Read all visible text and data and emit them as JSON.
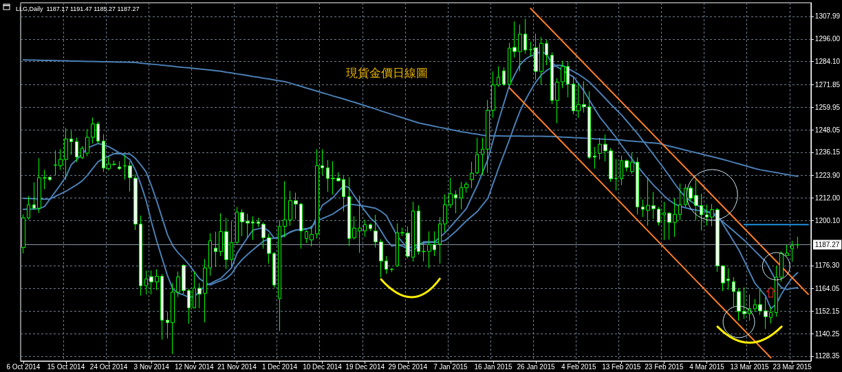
{
  "chart_data": {
    "type": "candlestick",
    "title": "LLG,Daily  1187.17 1191.47 1185.27 1187.27",
    "annotations": [
      "現貨金價日線圖"
    ],
    "categories": [
      "6 Oct 2014",
      null,
      null,
      null,
      null,
      null,
      null,
      null,
      "15 Oct 2014",
      null,
      null,
      null,
      null,
      null,
      null,
      null,
      "24 Oct 2014",
      null,
      null,
      null,
      null,
      null,
      null,
      null,
      "3 Nov 2014",
      null,
      null,
      null,
      null,
      null,
      null,
      null,
      "12 Nov 2014",
      null,
      null,
      null,
      null,
      null,
      null,
      null,
      "21 Nov 2014",
      null,
      null,
      null,
      null,
      null,
      null,
      null,
      "1 Dec 2014",
      null,
      null,
      null,
      null,
      null,
      null,
      null,
      "10 Dec 2014",
      null,
      null,
      null,
      null,
      null,
      null,
      null,
      "19 Dec 2014",
      null,
      null,
      null,
      null,
      null,
      null,
      null,
      "29 Dec 2014",
      null,
      null,
      null,
      null,
      null,
      null,
      null,
      "7 Jan 2015",
      null,
      null,
      null,
      null,
      null,
      null,
      null,
      "16 Jan 2015",
      null,
      null,
      null,
      null,
      null,
      null,
      null,
      "26 Jan 2015",
      null,
      null,
      null,
      null,
      null,
      null,
      null,
      "4 Feb 2015",
      null,
      null,
      null,
      null,
      null,
      null,
      null,
      "13 Feb 2015",
      null,
      null,
      null,
      null,
      null,
      null,
      null,
      "23 Feb 2015",
      null,
      null,
      null,
      null,
      null,
      null,
      null,
      "4 Mar 2015",
      null,
      null,
      null,
      null,
      null,
      null,
      null,
      "13 Mar 2015",
      null,
      null,
      null,
      null,
      null,
      null,
      null,
      "23 Mar 2015",
      null,
      null,
      null
    ],
    "color": "#00ff00",
    "ohlc": [
      [
        1185.8,
        1203.3,
        1182.7,
        1201.5
      ],
      [
        1201.5,
        1213.0,
        1200.6,
        1208.4
      ],
      [
        1208.4,
        1220.2,
        1205.7,
        1206.6
      ],
      [
        1206.6,
        1233.0,
        1204.1,
        1222.7
      ],
      [
        1222.7,
        1226.9,
        1216.6,
        1222.5
      ],
      [
        1223.0,
        1223.2,
        1220.8,
        1221.7
      ],
      [
        1229.3,
        1237.2,
        1224.1,
        1229.5
      ],
      [
        1229.0,
        1237.8,
        1226.8,
        1232.4
      ],
      [
        1232.4,
        1249.0,
        1221.5,
        1243.2
      ],
      [
        1243.2,
        1247.5,
        1234.8,
        1241.8
      ],
      [
        1241.8,
        1243.9,
        1230.9,
        1233.6
      ],
      [
        1233.3,
        1239.4,
        1232.6,
        1238.2
      ],
      [
        1235.7,
        1248.3,
        1234.0,
        1244.1
      ],
      [
        1244.1,
        1254.5,
        1240.8,
        1251.1
      ],
      [
        1251.1,
        1252.3,
        1240.6,
        1242.0
      ],
      [
        1242.0,
        1245.7,
        1225.7,
        1227.8
      ],
      [
        1227.5,
        1233.8,
        1226.5,
        1229.9
      ],
      [
        1229.9,
        1231.8,
        1229.0,
        1229.7
      ],
      [
        1228.4,
        1231.4,
        1226.8,
        1227.5
      ],
      [
        1229.0,
        1234.8,
        1221.7,
        1228.9
      ],
      [
        1229.0,
        1231.4,
        1215.4,
        1222.7
      ],
      [
        1222.4,
        1224.5,
        1195.1,
        1198.2
      ],
      [
        1198.2,
        1202.7,
        1160.4,
        1165.6
      ],
      [
        1165.6,
        1173.7,
        1161.0,
        1169.2
      ],
      [
        1170.4,
        1173.7,
        1161.0,
        1167.6
      ],
      [
        1167.6,
        1174.3,
        1163.4,
        1170.6
      ],
      [
        1170.6,
        1171.8,
        1137.1,
        1147.4
      ],
      [
        1147.4,
        1151.9,
        1137.7,
        1146.1
      ],
      [
        1146.1,
        1167.0,
        1129.5,
        1162.2
      ],
      [
        1162.2,
        1173.1,
        1159.7,
        1170.3
      ],
      [
        1176.4,
        1176.9,
        1161.2,
        1163.1
      ],
      [
        1163.1,
        1164.0,
        1145.5,
        1153.9
      ],
      [
        1153.9,
        1173.1,
        1153.7,
        1164.3
      ],
      [
        1164.3,
        1167.0,
        1153.7,
        1161.2
      ],
      [
        1161.6,
        1179.7,
        1146.2,
        1175.0
      ],
      [
        1175.0,
        1193.4,
        1170.9,
        1189.4
      ],
      [
        1185.5,
        1194.2,
        1175.5,
        1183.7
      ],
      [
        1183.7,
        1203.9,
        1181.3,
        1194.2
      ],
      [
        1194.2,
        1201.5,
        1174.4,
        1179.4
      ],
      [
        1179.4,
        1199.7,
        1175.2,
        1188.5
      ],
      [
        1188.5,
        1207.2,
        1187.6,
        1204.5
      ],
      [
        1204.3,
        1206.0,
        1191.8,
        1199.4
      ],
      [
        1199.7,
        1203.7,
        1191.2,
        1198.7
      ],
      [
        1199.4,
        1202.3,
        1189.8,
        1198.7
      ],
      [
        1199.4,
        1201.5,
        1196.7,
        1198.5
      ],
      [
        1198.1,
        1199.1,
        1185.2,
        1191.0
      ],
      [
        1191.0,
        1193.0,
        1177.3,
        1182.7
      ],
      [
        1182.7,
        1183.4,
        1164.6,
        1166.0
      ],
      [
        1158.8,
        1200.3,
        1141.6,
        1197.0
      ],
      [
        1197.0,
        1220.9,
        1191.2,
        1200.4
      ],
      [
        1200.4,
        1215.7,
        1197.3,
        1210.6
      ],
      [
        1210.6,
        1214.8,
        1200.7,
        1208.8
      ],
      [
        1208.8,
        1209.4,
        1185.2,
        1194.6
      ],
      [
        1190.6,
        1194.8,
        1188.2,
        1194.2
      ],
      [
        1189.8,
        1197.3,
        1186.4,
        1192.7
      ],
      [
        1193.0,
        1237.8,
        1190.6,
        1229.1
      ],
      [
        1229.1,
        1237.8,
        1224.1,
        1227.9
      ],
      [
        1227.9,
        1232.1,
        1215.2,
        1222.3
      ],
      [
        1222.4,
        1231.4,
        1213.8,
        1222.2
      ],
      [
        1222.4,
        1225.5,
        1220.5,
        1221.1
      ],
      [
        1221.7,
        1223.6,
        1204.8,
        1212.7
      ],
      [
        1212.7,
        1222.9,
        1186.6,
        1190.6
      ],
      [
        1191.0,
        1202.3,
        1190.0,
        1196.1
      ],
      [
        1194.6,
        1213.2,
        1183.0,
        1196.1
      ],
      [
        1194.6,
        1200.6,
        1191.5,
        1197.9
      ],
      [
        1197.9,
        1198.5,
        1194.6,
        1195.8
      ],
      [
        1194.6,
        1203.1,
        1185.8,
        1188.8
      ],
      [
        1188.8,
        1190.2,
        1170.0,
        1178.7
      ],
      [
        1178.7,
        1181.3,
        1171.9,
        1174.3
      ],
      [
        1174.4,
        1174.9,
        1172.8,
        1174.2
      ],
      [
        1176.1,
        1198.5,
        1175.5,
        1193.6
      ],
      [
        1193.5,
        1196.3,
        1191.8,
        1193.7
      ],
      [
        1193.4,
        1197.0,
        1180.1,
        1181.2
      ],
      [
        1180.7,
        1210.0,
        1178.3,
        1205.1
      ],
      [
        1205.1,
        1208.2,
        1182.1,
        1183.7
      ],
      [
        1183.6,
        1188.8,
        1178.5,
        1183.8
      ],
      [
        1183.8,
        1194.3,
        1174.9,
        1187.4
      ],
      [
        1187.4,
        1194.3,
        1181.3,
        1184.6
      ],
      [
        1187.6,
        1201.9,
        1177.3,
        1198.3
      ],
      [
        1198.3,
        1213.9,
        1193.9,
        1208.4
      ],
      [
        1208.4,
        1222.7,
        1206.7,
        1214.2
      ],
      [
        1213.7,
        1216.0,
        1203.9,
        1212.0
      ],
      [
        1212.0,
        1220.5,
        1206.0,
        1217.6
      ],
      [
        1217.4,
        1220.5,
        1214.8,
        1219.3
      ],
      [
        1221.7,
        1231.1,
        1217.2,
        1225.1
      ],
      [
        1225.3,
        1243.8,
        1224.5,
        1235.0
      ],
      [
        1235.0,
        1243.8,
        1224.1,
        1237.8
      ],
      [
        1237.8,
        1263.8,
        1225.3,
        1258.4
      ],
      [
        1258.4,
        1278.9,
        1254.4,
        1271.7
      ],
      [
        1271.7,
        1281.6,
        1270.8,
        1275.9
      ],
      [
        1279.2,
        1281.1,
        1271.3,
        1272.0
      ],
      [
        1272.0,
        1294.0,
        1271.3,
        1291.2
      ],
      [
        1291.6,
        1305.3,
        1286.2,
        1289.4
      ],
      [
        1289.4,
        1303.7,
        1278.9,
        1298.6
      ],
      [
        1298.6,
        1306.7,
        1288.2,
        1290.2
      ],
      [
        1290.5,
        1294.6,
        1286.8,
        1290.3
      ],
      [
        1291.4,
        1298.9,
        1274.4,
        1278.9
      ],
      [
        1278.9,
        1297.0,
        1272.0,
        1293.7
      ],
      [
        1293.7,
        1295.5,
        1282.2,
        1287.6
      ],
      [
        1287.4,
        1289.0,
        1261.6,
        1263.6
      ],
      [
        1263.6,
        1275.3,
        1251.5,
        1273.2
      ],
      [
        1273.4,
        1284.5,
        1270.0,
        1281.5
      ],
      [
        1281.5,
        1284.3,
        1265.2,
        1272.2
      ],
      [
        1272.2,
        1276.0,
        1256.3,
        1258.1
      ],
      [
        1258.1,
        1272.2,
        1254.3,
        1261.4
      ],
      [
        1261.4,
        1273.7,
        1257.1,
        1260.2
      ],
      [
        1260.2,
        1268.4,
        1232.6,
        1233.5
      ],
      [
        1234.2,
        1239.0,
        1227.5,
        1233.6
      ],
      [
        1235.6,
        1243.8,
        1232.3,
        1240.4
      ],
      [
        1240.4,
        1245.6,
        1231.4,
        1236.9
      ],
      [
        1236.9,
        1238.4,
        1220.5,
        1222.1
      ],
      [
        1222.3,
        1232.6,
        1216.0,
        1222.2
      ],
      [
        1222.1,
        1234.4,
        1218.8,
        1231.7
      ],
      [
        1231.7,
        1232.3,
        1226.0,
        1228.1
      ],
      [
        1226.0,
        1236.0,
        1224.8,
        1230.9
      ],
      [
        1230.9,
        1233.5,
        1203.3,
        1207.3
      ],
      [
        1207.3,
        1211.2,
        1201.9,
        1206.0
      ],
      [
        1205.5,
        1222.7,
        1197.3,
        1208.1
      ],
      [
        1207.9,
        1215.2,
        1200.9,
        1206.3
      ],
      [
        1206.1,
        1207.3,
        1197.5,
        1199.1
      ],
      [
        1203.1,
        1209.9,
        1189.8,
        1204.1
      ],
      [
        1203.9,
        1204.5,
        1190.0,
        1199.1
      ],
      [
        1199.1,
        1211.8,
        1191.5,
        1203.3
      ],
      [
        1203.3,
        1219.6,
        1200.3,
        1208.4
      ],
      [
        1208.4,
        1219.3,
        1207.2,
        1217.2
      ],
      [
        1217.2,
        1218.4,
        1210.2,
        1211.8
      ],
      [
        1213.3,
        1221.5,
        1200.3,
        1208.0
      ],
      [
        1208.0,
        1214.2,
        1194.9,
        1203.1
      ],
      [
        1203.1,
        1208.5,
        1197.3,
        1201.9
      ],
      [
        1201.9,
        1208.8,
        1197.1,
        1205.8
      ],
      [
        1205.8,
        1206.7,
        1172.9,
        1176.1
      ],
      [
        1176.1,
        1176.5,
        1162.8,
        1167.1
      ],
      [
        1169.1,
        1174.9,
        1163.4,
        1168.3
      ],
      [
        1167.7,
        1170.1,
        1154.6,
        1162.5
      ],
      [
        1162.5,
        1164.4,
        1147.1,
        1152.0
      ],
      [
        1152.0,
        1164.7,
        1148.0,
        1150.8
      ],
      [
        1150.8,
        1161.0,
        1147.1,
        1153.5
      ],
      [
        1153.4,
        1158.6,
        1151.6,
        1155.6
      ],
      [
        1155.6,
        1163.4,
        1150.1,
        1152.3
      ],
      [
        1152.3,
        1159.6,
        1142.7,
        1149.2
      ],
      [
        1148.9,
        1154.4,
        1145.6,
        1151.4
      ],
      [
        1151.4,
        1176.1,
        1149.2,
        1170.1
      ],
      [
        1170.1,
        1183.8,
        1167.7,
        1182.8
      ],
      [
        1181.6,
        1187.2,
        1181.2,
        1182.8
      ],
      [
        1185.2,
        1189.4,
        1178.2,
        1186.8
      ],
      [
        1187.17,
        1191.47,
        1185.27,
        1187.27
      ],
      null,
      null
    ],
    "series": [
      {
        "type": "line",
        "color": "#4a7fb5",
        "values": [
          1285.0,
          1284.9,
          1284.9,
          1284.8,
          1284.7,
          1284.7,
          1284.6,
          1284.5,
          1284.5,
          1284.4,
          1284.4,
          1284.3,
          1284.2,
          1284.2,
          1284.1,
          1284.0,
          1284.0,
          1283.9,
          1283.8,
          1283.8,
          1283.7,
          1283.6,
          1283.3,
          1283.0,
          1282.7,
          1282.5,
          1282.2,
          1281.9,
          1281.6,
          1281.3,
          1281.0,
          1280.8,
          1280.5,
          1280.2,
          1279.9,
          1279.6,
          1279.3,
          1279.0,
          1278.5,
          1278.1,
          1277.6,
          1277.2,
          1276.7,
          1276.2,
          1275.8,
          1275.3,
          1274.9,
          1274.4,
          1273.9,
          1273.5,
          1272.7,
          1271.8,
          1271.0,
          1270.1,
          1269.3,
          1268.5,
          1267.6,
          1266.8,
          1265.9,
          1265.1,
          1264.3,
          1263.4,
          1262.6,
          1261.7,
          1260.8,
          1259.9,
          1259.0,
          1258.0,
          1257.1,
          1256.2,
          1255.3,
          1254.4,
          1253.5,
          1252.6,
          1251.7,
          1251.1,
          1250.5,
          1249.9,
          1249.3,
          1248.8,
          1248.2,
          1247.6,
          1247.0,
          1246.6,
          1246.1,
          1245.7,
          1245.2,
          1244.8,
          1244.8,
          1244.8,
          1244.7,
          1244.7,
          1244.7,
          1244.7,
          1244.6,
          1244.6,
          1244.6,
          1244.6,
          1244.5,
          1244.5,
          1244.4,
          1244.2,
          1244.1,
          1243.9,
          1243.8,
          1243.6,
          1243.5,
          1243.3,
          1243.2,
          1243.0,
          1242.9,
          1242.7,
          1242.6,
          1242.3,
          1242.1,
          1241.8,
          1241.6,
          1241.3,
          1241.1,
          1240.8,
          1240.1,
          1239.4,
          1238.7,
          1238.0,
          1237.3,
          1236.6,
          1235.9,
          1235.2,
          1234.5,
          1233.8,
          1233.1,
          1232.4,
          1231.6,
          1230.8,
          1230.0,
          1229.2,
          1228.4,
          1227.6,
          1226.9,
          1226.4,
          1225.9,
          1225.4,
          1224.9,
          1224.4,
          1223.9,
          1223.4,
          null,
          null
        ]
      },
      {
        "type": "line",
        "color": "#4a7fb5",
        "values": [
          1206.0,
          1206.1,
          1206.2,
          1206.3,
          1207.6,
          1211.5,
          1215.3,
          1219.2,
          1223.4,
          1229.7,
          1232.3,
          1235.1,
          1238.4,
          1239.6,
          1240.8,
          1240.1,
          1239.1,
          1237.5,
          1235.8,
          1234.2,
          1232.2,
          1226.7,
          1219.4,
          1210.6,
          1199.3,
          1189.1,
          1180.0,
          1170.9,
          1163.9,
          1161.6,
          1160.8,
          1159.5,
          1159.7,
          1162.6,
          1165.5,
          1166.7,
          1168.2,
          1169.5,
          1172.3,
          1175.1,
          1182.6,
          1186.9,
          1191.1,
          1195.0,
          1195.7,
          1196.4,
          1194.4,
          1190.7,
          1191.0,
          1192.1,
          1194.1,
          1195.0,
          1195.5,
          1195.8,
          1196.1,
          1202.3,
          1208.1,
          1210.1,
          1212.2,
          1215.5,
          1218.5,
          1217.4,
          1213.0,
          1209.0,
          1205.1,
          1201.4,
          1198.9,
          1194.5,
          1189.9,
          1186.6,
          1187.2,
          1186.6,
          1184.9,
          1183.7,
          1187.2,
          1188.8,
          1188.8,
          1188.8,
          1191.1,
          1193.7,
          1196.8,
          1200.0,
          1203.2,
          1206.5,
          1212.7,
          1218.5,
          1225.5,
          1232.4,
          1242.6,
          1252.8,
          1262.1,
          1271.2,
          1277.0,
          1282.3,
          1285.3,
          1287.0,
          1288.0,
          1289.7,
          1287.7,
          1283.5,
          1281.2,
          1279.6,
          1277.5,
          1276.1,
          1272.4,
          1268.5,
          1263.8,
          1259.1,
          1254.6,
          1251.1,
          1247.5,
          1244.0,
          1240.0,
          1236.2,
          1232.5,
          1228.9,
          1225.4,
          1222.1,
          1218.8,
          1216.1,
          1213.1,
          1210.7,
          1208.8,
          1207.6,
          1206.8,
          1206.1,
          1205.6,
          1205.0,
          1204.5,
          1204.0,
          1202.9,
          1198.3,
          1193.7,
          1189.1,
          1184.5,
          1178.8,
          1172.8,
          1167.0,
          1163.6,
          1160.2,
          1153.5,
          1155.9,
          1161.3,
          1165.9,
          1169.8,
          1172.5,
          null,
          null
        ]
      },
      {
        "type": "line",
        "color": "#4a7fb5",
        "values": [
          1211.8,
          1211.7,
          1211.6,
          1211.5,
          1211.3,
          1211.4,
          1212.8,
          1214.2,
          1215.6,
          1217.3,
          1219.0,
          1221.0,
          1224.0,
          1227.6,
          1231.2,
          1232.8,
          1234.1,
          1235.4,
          1235.4,
          1235.4,
          1235.2,
          1232.9,
          1229.5,
          1225.7,
          1218.4,
          1210.3,
          1201.4,
          1192.5,
          1186.7,
          1183.0,
          1180.1,
          1176.9,
          1173.0,
          1169.3,
          1167.4,
          1166.0,
          1167.2,
          1168.3,
          1169.4,
          1171.9,
          1176.2,
          1179.5,
          1182.1,
          1184.6,
          1186.9,
          1189.2,
          1190.3,
          1190.8,
          1191.4,
          1192.6,
          1193.9,
          1195.0,
          1195.2,
          1195.4,
          1196.8,
          1199.8,
          1201.1,
          1202.3,
          1203.6,
          1205.5,
          1207.4,
          1208.7,
          1208.4,
          1208.1,
          1207.6,
          1207.1,
          1206.5,
          1204.9,
          1202.7,
          1197.3,
          1192.0,
          1188.6,
          1185.2,
          1186.4,
          1187.6,
          1188.1,
          1188.5,
          1188.6,
          1188.7,
          1189.6,
          1191.9,
          1194.4,
          1197.2,
          1200.0,
          1202.4,
          1204.8,
          1208.3,
          1211.8,
          1219.8,
          1227.7,
          1235.1,
          1242.6,
          1250.4,
          1257.8,
          1263.6,
          1268.8,
          1273.3,
          1277.0,
          1279.4,
          1281.1,
          1282.2,
          1282.0,
          1280.5,
          1278.9,
          1277.3,
          1275.4,
          1273.3,
          1270.5,
          1267.6,
          1264.6,
          1261.6,
          1258.8,
          1256.0,
          1252.7,
          1249.4,
          1246.1,
          1242.4,
          1238.7,
          1235.0,
          1231.2,
          1227.5,
          1223.5,
          1219.5,
          1215.7,
          1212.4,
          1210.2,
          1208.5,
          1206.8,
          1205.1,
          1203.5,
          1201.8,
          1199.4,
          1197.0,
          1194.6,
          1192.1,
          1189.7,
          1186.9,
          1184.0,
          1181.2,
          1178.4,
          1173.3,
          1168.0,
          1164.6,
          1163.6,
          1164.2,
          1164.6,
          null,
          null
        ]
      },
      {
        "type": "line",
        "color": "#ff7f27",
        "values": [
          null,
          null,
          null,
          null,
          null,
          null,
          null,
          null,
          null,
          null,
          null,
          null,
          null,
          null,
          null,
          null,
          null,
          null,
          null,
          null,
          null,
          null,
          null,
          null,
          null,
          null,
          null,
          null,
          null,
          null,
          null,
          null,
          null,
          null,
          null,
          null,
          null,
          null,
          null,
          null,
          null,
          null,
          null,
          null,
          null,
          null,
          null,
          null,
          null,
          null,
          null,
          null,
          null,
          null,
          null,
          null,
          null,
          null,
          null,
          null,
          null,
          null,
          null,
          null,
          null,
          null,
          null,
          null,
          null,
          null,
          null,
          null,
          null,
          null,
          null,
          null,
          null,
          null,
          null,
          null,
          null,
          null,
          null,
          null,
          null,
          null,
          null,
          null,
          null,
          null,
          null,
          null,
          null,
          null,
          null,
          1312.2,
          null,
          null,
          null,
          null,
          null,
          null,
          null,
          null,
          null,
          null,
          null,
          null,
          null,
          null,
          null,
          null,
          null,
          null,
          null,
          null,
          null,
          null,
          null,
          null,
          null,
          null,
          null,
          null,
          null,
          null,
          null,
          null,
          null,
          null,
          null,
          null,
          null,
          null,
          null,
          null,
          null,
          null,
          null,
          null,
          null,
          null,
          null,
          null,
          null,
          null,
          null,
          1161.1
        ]
      },
      {
        "type": "line",
        "color": "#ff7f27",
        "values": [
          null,
          null,
          null,
          null,
          null,
          null,
          null,
          null,
          null,
          null,
          null,
          null,
          null,
          null,
          null,
          null,
          null,
          null,
          null,
          null,
          null,
          null,
          null,
          null,
          null,
          null,
          null,
          null,
          null,
          null,
          null,
          null,
          null,
          null,
          null,
          null,
          null,
          null,
          null,
          null,
          null,
          null,
          null,
          null,
          null,
          null,
          null,
          null,
          null,
          null,
          null,
          null,
          null,
          null,
          null,
          null,
          null,
          null,
          null,
          null,
          null,
          null,
          null,
          null,
          null,
          null,
          null,
          null,
          null,
          null,
          null,
          null,
          null,
          null,
          null,
          null,
          null,
          null,
          null,
          null,
          null,
          null,
          null,
          null,
          null,
          null,
          null,
          null,
          null,
          null,
          null,
          1270.3,
          null,
          null,
          null,
          null,
          null,
          null,
          null,
          null,
          null,
          null,
          null,
          null,
          null,
          null,
          null,
          null,
          null,
          null,
          null,
          null,
          null,
          null,
          null,
          null,
          null,
          null,
          null,
          null,
          null,
          null,
          null,
          null,
          null,
          null,
          null,
          null,
          null,
          null,
          null,
          null,
          null,
          null,
          null,
          null,
          null,
          null,
          null,
          null,
          1127.5,
          null,
          null,
          null,
          null,
          null,
          null,
          null
        ]
      },
      {
        "type": "line",
        "color": "#1e90e0",
        "values": [
          null,
          null,
          null,
          null,
          null,
          null,
          null,
          null,
          null,
          null,
          null,
          null,
          null,
          null,
          null,
          null,
          null,
          null,
          null,
          null,
          null,
          null,
          null,
          null,
          null,
          null,
          null,
          null,
          null,
          null,
          null,
          null,
          null,
          null,
          null,
          null,
          null,
          null,
          null,
          null,
          null,
          null,
          null,
          null,
          null,
          null,
          null,
          null,
          null,
          null,
          null,
          null,
          null,
          null,
          null,
          null,
          null,
          null,
          null,
          null,
          null,
          null,
          null,
          null,
          null,
          null,
          null,
          null,
          null,
          null,
          null,
          null,
          null,
          null,
          null,
          null,
          null,
          null,
          null,
          null,
          null,
          null,
          null,
          null,
          null,
          null,
          null,
          null,
          null,
          null,
          null,
          null,
          null,
          null,
          null,
          null,
          null,
          null,
          null,
          null,
          null,
          null,
          null,
          null,
          null,
          null,
          null,
          null,
          null,
          null,
          null,
          null,
          null,
          null,
          null,
          null,
          null,
          null,
          null,
          null,
          null,
          null,
          null,
          null,
          null,
          null,
          null,
          null,
          null,
          null,
          null,
          null,
          null,
          null,
          null,
          1197.9,
          null,
          null,
          null,
          null,
          null,
          null,
          null,
          null,
          null,
          null,
          null,
          1197.9
        ]
      }
    ],
    "ylim": [
      1125.8,
      1315.2
    ],
    "yticks": [
      1128.35,
      1140.25,
      1152.15,
      1164.05,
      {
        "value": 1176.3,
        "label": "1176.30"
      },
      {
        "value": 1200.1,
        "label": "1200.10"
      },
      {
        "value": 1212,
        "label": "1212.00"
      },
      {
        "value": 1223.9,
        "label": "1223.90"
      },
      1236.15,
      1248.05,
      1259.95,
      1271.85,
      {
        "value": 1284.1,
        "label": "1284.10"
      },
      {
        "value": 1296,
        "label": "1296.00"
      },
      1307.99
    ],
    "ref_lines": [
      {
        "axis": "y",
        "value": 1187.27,
        "label": "1187.27",
        "color": "#8a96a5"
      }
    ],
    "grid": true
  }
}
